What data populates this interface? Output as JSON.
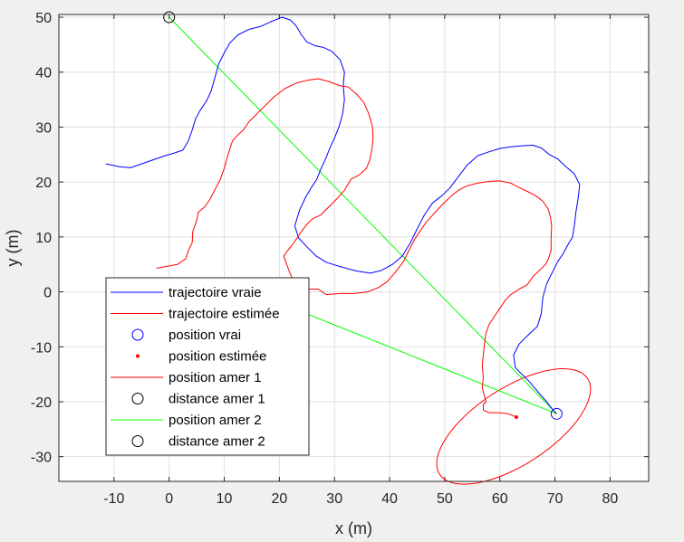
{
  "chart_data": {
    "type": "line",
    "xlabel": "x (m)",
    "ylabel": "y (m)",
    "xlim": [
      -20,
      87
    ],
    "ylim": [
      -34.5,
      50.5
    ],
    "xticks": [
      "-10",
      "0",
      "10",
      "20",
      "30",
      "40",
      "50",
      "60",
      "70",
      "80"
    ],
    "yticks": [
      "-30",
      "-20",
      "-10",
      "0",
      "10",
      "20",
      "30",
      "40",
      "50"
    ],
    "grid": true,
    "legend_location": "bottom-left",
    "legend": [
      {
        "label": "trajectoire vraie",
        "kind": "line",
        "color": "#0000ff"
      },
      {
        "label": "trajectoire estimée",
        "kind": "line",
        "color": "#ff0000"
      },
      {
        "label": "position vrai",
        "kind": "circle",
        "color": "#0000ff"
      },
      {
        "label": "position estimée",
        "kind": "dot",
        "color": "#ff0000"
      },
      {
        "label": "position amer 1",
        "kind": "line",
        "color": "#ff0000"
      },
      {
        "label": "distance amer 1",
        "kind": "circle",
        "color": "#000000"
      },
      {
        "label": "position amer 2",
        "kind": "line",
        "color": "#00ff00"
      },
      {
        "label": "distance amer 2",
        "kind": "circle",
        "color": "#000000"
      }
    ],
    "series": [
      {
        "name": "trajectoire vraie",
        "color": "#0000ff",
        "points": [
          [
            -11.5,
            23.3
          ],
          [
            -9,
            22.8
          ],
          [
            -7,
            22.6
          ],
          [
            -5,
            23.3
          ],
          [
            -3,
            24
          ],
          [
            -1,
            24.7
          ],
          [
            1,
            25.3
          ],
          [
            2.5,
            25.8
          ],
          [
            3.5,
            27.5
          ],
          [
            4.2,
            29.5
          ],
          [
            4.8,
            31.5
          ],
          [
            5.6,
            33
          ],
          [
            6.8,
            34.8
          ],
          [
            7.6,
            36.5
          ],
          [
            8.3,
            39
          ],
          [
            9,
            41.5
          ],
          [
            10,
            43.5
          ],
          [
            11,
            45.3
          ],
          [
            12.5,
            46.8
          ],
          [
            14.5,
            47.8
          ],
          [
            16.5,
            48.3
          ],
          [
            18.5,
            49.2
          ],
          [
            20.5,
            50.0
          ],
          [
            22,
            49.5
          ],
          [
            23,
            48.5
          ],
          [
            24,
            46.8
          ],
          [
            25,
            45.5
          ],
          [
            26.5,
            44.8
          ],
          [
            28,
            44.5
          ],
          [
            29.5,
            43.8
          ],
          [
            31,
            42.3
          ],
          [
            31.8,
            40
          ],
          [
            31.6,
            37.5
          ],
          [
            31.8,
            35
          ],
          [
            31.5,
            32.5
          ],
          [
            30.8,
            30
          ],
          [
            30,
            28
          ],
          [
            29.3,
            26.5
          ],
          [
            28.5,
            24.5
          ],
          [
            27.5,
            22.3
          ],
          [
            26.8,
            20.5
          ],
          [
            25.8,
            19
          ],
          [
            24.8,
            17.3
          ],
          [
            23.7,
            15
          ],
          [
            22.8,
            12
          ],
          [
            23.5,
            9.8
          ],
          [
            25,
            8.2
          ],
          [
            26.7,
            6.5
          ],
          [
            28.5,
            5.4
          ],
          [
            31,
            4.6
          ],
          [
            34,
            3.8
          ],
          [
            36.5,
            3.4
          ],
          [
            38.5,
            3.9
          ],
          [
            40.5,
            5
          ],
          [
            42.3,
            6.5
          ],
          [
            43.8,
            9
          ],
          [
            45,
            11.5
          ],
          [
            46.3,
            14
          ],
          [
            47.8,
            16.2
          ],
          [
            49.5,
            17.5
          ],
          [
            51,
            19
          ],
          [
            52.5,
            21
          ],
          [
            54,
            23
          ],
          [
            56,
            24.8
          ],
          [
            58,
            25.5
          ],
          [
            60,
            26.1
          ],
          [
            62,
            26.4
          ],
          [
            64,
            26.6
          ],
          [
            66,
            26.7
          ],
          [
            67.5,
            26.2
          ],
          [
            69,
            25
          ],
          [
            70.5,
            24.2
          ],
          [
            72,
            22.8
          ],
          [
            73.5,
            21.5
          ],
          [
            74.5,
            19.5
          ],
          [
            74.2,
            17
          ],
          [
            73.8,
            14.5
          ],
          [
            73.5,
            12
          ],
          [
            73.2,
            10
          ],
          [
            72.3,
            8.5
          ],
          [
            71.5,
            7
          ],
          [
            70.5,
            5.5
          ],
          [
            69.5,
            3.5
          ],
          [
            68.5,
            1.5
          ],
          [
            67.8,
            -1
          ],
          [
            67.5,
            -4
          ],
          [
            66.8,
            -6.3
          ],
          [
            65,
            -8
          ],
          [
            63.5,
            -9.5
          ],
          [
            62.5,
            -11.5
          ],
          [
            62.8,
            -13.8
          ],
          [
            64,
            -15
          ],
          [
            65.5,
            -16.5
          ],
          [
            67,
            -18.3
          ],
          [
            68.5,
            -20
          ],
          [
            69.5,
            -21.3
          ],
          [
            70.3,
            -22.2
          ]
        ]
      },
      {
        "name": "trajectoire estimée",
        "color": "#ff0000",
        "points": [
          [
            -2.3,
            4.3
          ],
          [
            1.5,
            5
          ],
          [
            3,
            6
          ],
          [
            3.5,
            7.5
          ],
          [
            4.2,
            9
          ],
          [
            4.3,
            11
          ],
          [
            5,
            13
          ],
          [
            5.3,
            14.5
          ],
          [
            6.5,
            15.5
          ],
          [
            7.5,
            17
          ],
          [
            8.3,
            18.6
          ],
          [
            9.3,
            20.5
          ],
          [
            10,
            22.5
          ],
          [
            10.7,
            25
          ],
          [
            11.5,
            27.5
          ],
          [
            12.7,
            28.8
          ],
          [
            13.5,
            29.5
          ],
          [
            14.5,
            31
          ],
          [
            16,
            32.5
          ],
          [
            17.5,
            34
          ],
          [
            19,
            35.5
          ],
          [
            21,
            37
          ],
          [
            23,
            38
          ],
          [
            25,
            38.5
          ],
          [
            27,
            38.8
          ],
          [
            29,
            38.3
          ],
          [
            31,
            37.5
          ],
          [
            32.5,
            37.3
          ],
          [
            34,
            36
          ],
          [
            35.3,
            34.5
          ],
          [
            36.2,
            32.5
          ],
          [
            36.9,
            30
          ],
          [
            37,
            28
          ],
          [
            36.8,
            26
          ],
          [
            36.4,
            24
          ],
          [
            35.8,
            22.5
          ],
          [
            34.5,
            21.3
          ],
          [
            33,
            20.5
          ],
          [
            31.8,
            18.5
          ],
          [
            30.5,
            17
          ],
          [
            29,
            15.5
          ],
          [
            27.5,
            14
          ],
          [
            26,
            13.3
          ],
          [
            25,
            12.3
          ],
          [
            24,
            11
          ],
          [
            23.2,
            9.8
          ],
          [
            22.3,
            8.5
          ],
          [
            21.5,
            7.5
          ],
          [
            20.8,
            6.5
          ],
          [
            21.5,
            4.5
          ],
          [
            22.5,
            2
          ],
          [
            23.8,
            0.5
          ],
          [
            25.5,
            0.5
          ],
          [
            27,
            0.5
          ],
          [
            28.5,
            -0.5
          ],
          [
            31,
            -0.3
          ],
          [
            33.5,
            -0.3
          ],
          [
            36,
            0
          ],
          [
            38,
            0.8
          ],
          [
            39.5,
            1.8
          ],
          [
            41,
            3.5
          ],
          [
            42.5,
            5.5
          ],
          [
            43.5,
            7.5
          ],
          [
            44.5,
            9.5
          ],
          [
            45.5,
            11
          ],
          [
            46.5,
            12.5
          ],
          [
            48,
            14.2
          ],
          [
            49.5,
            15.8
          ],
          [
            51,
            17.3
          ],
          [
            52.5,
            18.5
          ],
          [
            54,
            19.3
          ],
          [
            56,
            19.8
          ],
          [
            58,
            20.1
          ],
          [
            60,
            20.2
          ],
          [
            62,
            19.8
          ],
          [
            63.5,
            19
          ],
          [
            65,
            18.3
          ],
          [
            66.5,
            17.5
          ],
          [
            67.8,
            16.5
          ],
          [
            68.8,
            15
          ],
          [
            69.2,
            13.5
          ],
          [
            69.4,
            12
          ],
          [
            69.3,
            10
          ],
          [
            69.3,
            7.5
          ],
          [
            68.8,
            6
          ],
          [
            68.3,
            5
          ],
          [
            67.3,
            4
          ],
          [
            66,
            2.8
          ],
          [
            65,
            1.3
          ],
          [
            63.5,
            0.5
          ],
          [
            62,
            -0.5
          ],
          [
            61,
            -1.5
          ],
          [
            60,
            -3
          ],
          [
            59,
            -4.5
          ],
          [
            58,
            -6
          ],
          [
            57.5,
            -7.5
          ],
          [
            57.2,
            -9.5
          ],
          [
            57,
            -11.5
          ],
          [
            56.8,
            -13.5
          ],
          [
            57,
            -15.5
          ],
          [
            56.8,
            -17.5
          ],
          [
            57.2,
            -19
          ],
          [
            57.5,
            -20
          ],
          [
            57,
            -20.5
          ],
          [
            57,
            -21.5
          ],
          [
            58,
            -22
          ],
          [
            60,
            -22
          ],
          [
            61.5,
            -22.2
          ],
          [
            63,
            -22.8
          ]
        ]
      },
      {
        "name": "position amer 1",
        "color": "#ff0000",
        "kind": "ellipse",
        "center": [
          62.5,
          -24.5
        ],
        "rx": 16.0,
        "ry": 7.0,
        "angle_deg": 33
      }
    ],
    "markers": [
      {
        "name": "position vrai",
        "x": 70.3,
        "y": -22.2,
        "color": "#0000ff"
      },
      {
        "name": "position estimée",
        "x": 63,
        "y": -22.8,
        "color": "#ff0000"
      },
      {
        "name": "amer 2",
        "x": 0,
        "y": 50,
        "color": "#000000"
      }
    ],
    "lines": [
      {
        "name": "position amer 2",
        "color": "#00ff00",
        "x1": 0,
        "y1": 50,
        "x2": 70.3,
        "y2": -22.2
      },
      {
        "name": "position amer 2 (b)",
        "color": "#00ff00",
        "x1": 20,
        "y1": -2,
        "x2": 70.3,
        "y2": -22.2
      }
    ]
  }
}
